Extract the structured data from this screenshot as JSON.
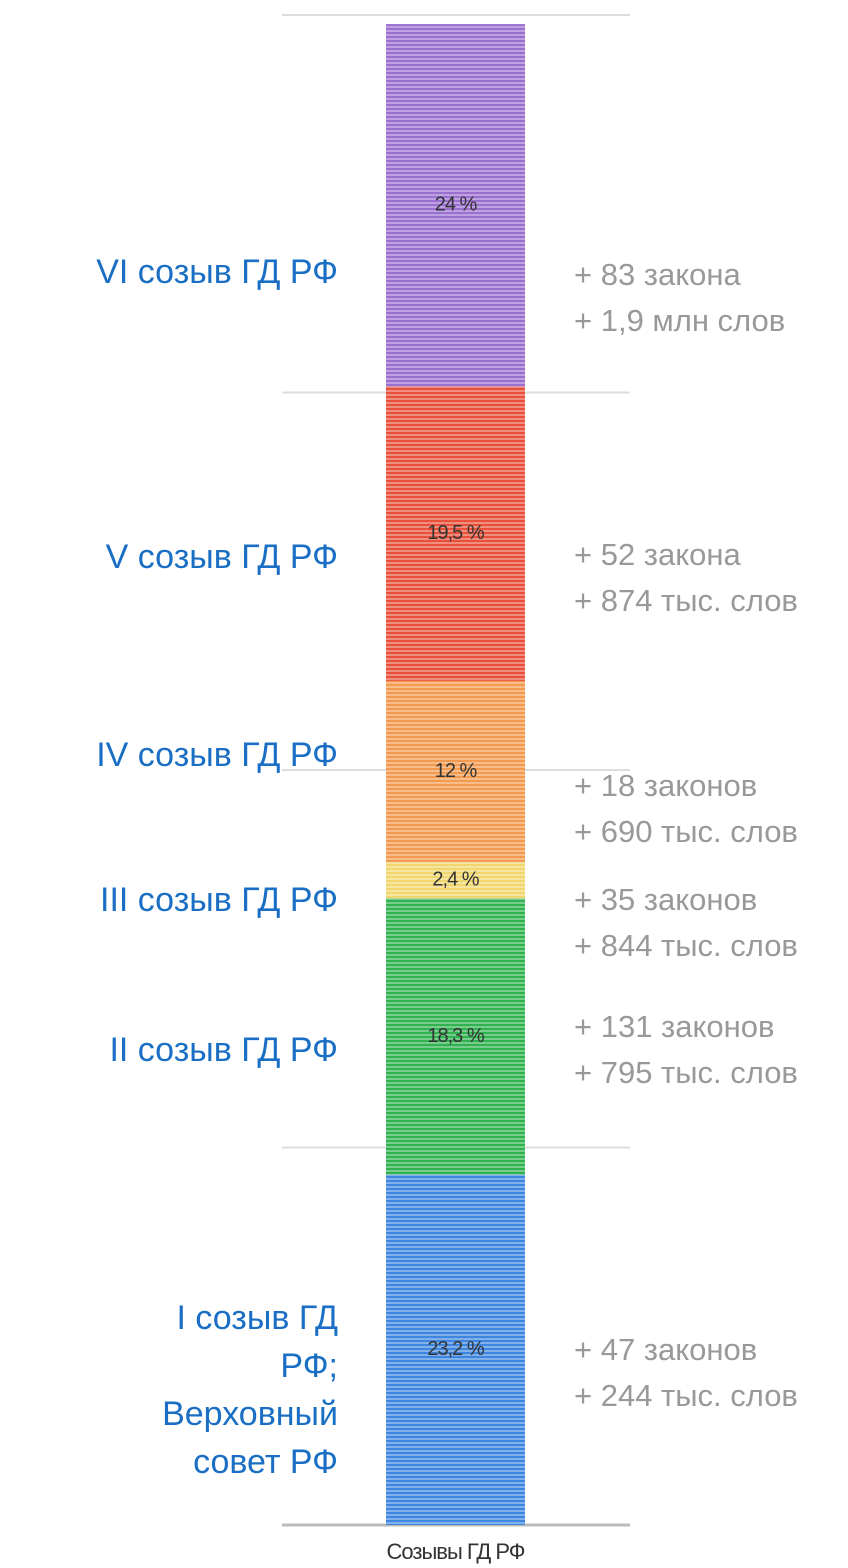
{
  "chart_data": {
    "type": "stacked_bar",
    "categories": [
      "Созывы ГД РФ"
    ],
    "ylim": [
      0,
      100
    ],
    "yticks": [
      0,
      25,
      50,
      75,
      100
    ],
    "grid": true,
    "series": [
      {
        "name": "I созыв ГД РФ; Верховный совет РФ",
        "color": "#3d86e0",
        "values": [
          23.2
        ],
        "value_labels": [
          "23,2 %"
        ],
        "annotation": [
          "+ 47 законов",
          "+ 244 тыс. слов"
        ]
      },
      {
        "name": "II созыв ГД РФ",
        "color": "#2fb24f",
        "values": [
          18.3
        ],
        "value_labels": [
          "18,3 %"
        ],
        "annotation": [
          "+ 131 законов",
          "+ 795 тыс. слов"
        ]
      },
      {
        "name": "III созыв ГД РФ",
        "color": "#f1d66e",
        "values": [
          2.4
        ],
        "value_labels": [
          "2,4 %"
        ],
        "annotation": [
          "+ 35 законов",
          "+ 844 тыс. слов"
        ]
      },
      {
        "name": "IV созыв ГД РФ",
        "color": "#f39a4f",
        "values": [
          12
        ],
        "value_labels": [
          "12 %"
        ],
        "annotation": [
          "+ 18 законов",
          "+ 690 тыс. слов"
        ]
      },
      {
        "name": "V созыв ГД РФ",
        "color": "#e8503a",
        "values": [
          19.5
        ],
        "value_labels": [
          "19,5 %"
        ],
        "annotation": [
          "+ 52 закона",
          "+ 874 тыс. слов"
        ]
      },
      {
        "name": "VI созыв ГД РФ",
        "color": "#9b6fd0",
        "values": [
          24
        ],
        "value_labels": [
          "24 %"
        ],
        "annotation": [
          "+ 83 закона",
          "+ 1,9 млн слов"
        ]
      }
    ]
  }
}
